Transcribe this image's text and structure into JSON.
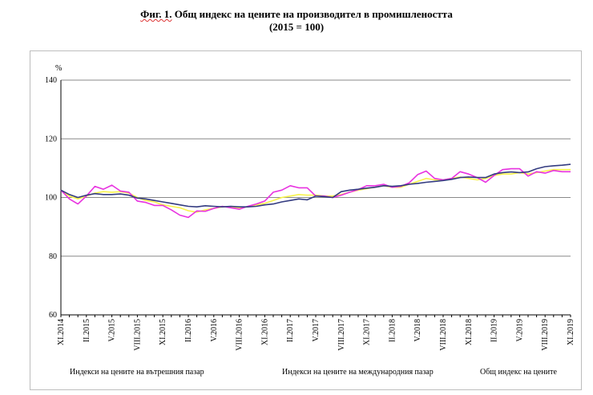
{
  "title": {
    "prefix": "Фиг. 1.",
    "main": " Общ индекс на цените на производител в промишлеността",
    "line2": "(2015 = 100)"
  },
  "chart_data": {
    "type": "line",
    "ylabel": "%",
    "ylim": [
      60,
      140
    ],
    "yticks": [
      60,
      80,
      100,
      120,
      140
    ],
    "grid": true,
    "x": [
      "XI.2014",
      "XII.2014",
      "I.2015",
      "II.2015",
      "III.2015",
      "IV.2015",
      "V.2015",
      "VI.2015",
      "VII.2015",
      "VIII.2015",
      "IX.2015",
      "X.2015",
      "XI.2015",
      "XII.2015",
      "I.2016",
      "II.2016",
      "III.2016",
      "IV.2016",
      "V.2016",
      "VI.2016",
      "VII.2016",
      "VIII.2016",
      "IX.2016",
      "X.2016",
      "XI.2016",
      "XII.2016",
      "I.2017",
      "II.2017",
      "III.2017",
      "IV.2017",
      "V.2017",
      "VI.2017",
      "VII.2017",
      "VIII.2017",
      "IX.2017",
      "X.2017",
      "XI.2017",
      "XII.2017",
      "I.2018",
      "II.2018",
      "III.2018",
      "IV.2018",
      "V.2018",
      "VI.2018",
      "VII.2018",
      "VIII.2018",
      "IX.2018",
      "X.2018",
      "XI.2018",
      "XII.2018",
      "I.2019",
      "II.2019",
      "III.2019",
      "IV.2019",
      "V.2019",
      "VI.2019",
      "VII.2019",
      "VIII.2019",
      "IX.2019",
      "X.2019",
      "XI.2019"
    ],
    "tick_labels": [
      "XI.2014",
      "II.2015",
      "V.2015",
      "VIII.2015",
      "XI.2015",
      "II.2016",
      "V.2016",
      "VIII.2016",
      "XI.2016",
      "II.2017",
      "V.2017",
      "VIII.2017",
      "XI.2017",
      "II.2018",
      "V.2018",
      "VIII.2018",
      "XI.2018",
      "II.2019",
      "V.2019",
      "VIII.2019",
      "XI.2019"
    ],
    "legend_position": "bottom",
    "series": [
      {
        "name": "Индекси на цените на вътрешния пазар",
        "color": "#f7f34a",
        "values": [
          102.5,
          100.5,
          99.5,
          100.5,
          101.5,
          102.0,
          101.8,
          102.0,
          101.5,
          100.0,
          99.0,
          98.5,
          97.5,
          97.0,
          96.5,
          95.5,
          95.0,
          95.8,
          96.3,
          96.8,
          96.8,
          96.5,
          96.8,
          97.5,
          98.0,
          99.0,
          100.0,
          100.5,
          101.0,
          100.8,
          100.8,
          100.5,
          100.5,
          101.0,
          101.8,
          102.5,
          103.0,
          103.5,
          104.0,
          103.5,
          103.5,
          104.5,
          105.5,
          106.5,
          106.0,
          106.0,
          106.5,
          107.0,
          106.5,
          106.0,
          106.5,
          107.5,
          108.0,
          108.0,
          108.5,
          108.0,
          108.5,
          109.0,
          109.5,
          109.5,
          109.5
        ]
      },
      {
        "name": "Индекси на цените на международния пазар",
        "color": "#e832e0",
        "values": [
          102.5,
          99.5,
          97.8,
          100.5,
          103.8,
          102.8,
          104.2,
          102.2,
          101.8,
          98.8,
          98.3,
          97.3,
          97.3,
          95.8,
          94.0,
          93.2,
          95.4,
          95.3,
          96.3,
          97.0,
          96.5,
          96.0,
          97.0,
          97.8,
          98.8,
          101.8,
          102.5,
          104.0,
          103.3,
          103.3,
          100.5,
          100.5,
          100.0,
          100.8,
          101.8,
          102.7,
          104.0,
          104.0,
          104.5,
          103.5,
          103.8,
          105.0,
          107.8,
          109.0,
          106.5,
          106.0,
          106.5,
          108.8,
          108.0,
          106.8,
          105.2,
          107.5,
          109.5,
          109.8,
          109.8,
          107.3,
          108.8,
          108.3,
          109.2,
          108.8,
          108.8
        ]
      },
      {
        "name": "Общ индекс на цените",
        "color": "#333b80",
        "values": [
          102.5,
          101.0,
          100.0,
          100.8,
          101.3,
          101.0,
          101.0,
          101.2,
          100.8,
          99.8,
          99.5,
          99.0,
          98.5,
          98.0,
          97.5,
          97.0,
          96.8,
          97.2,
          97.0,
          96.8,
          97.0,
          96.8,
          96.8,
          97.0,
          97.5,
          97.8,
          98.5,
          99.0,
          99.5,
          99.2,
          100.5,
          100.3,
          100.0,
          102.0,
          102.5,
          102.8,
          103.2,
          103.5,
          104.0,
          103.8,
          104.0,
          104.5,
          104.8,
          105.2,
          105.5,
          105.8,
          106.2,
          106.8,
          107.0,
          106.8,
          106.8,
          108.0,
          108.5,
          108.7,
          108.5,
          108.7,
          109.8,
          110.5,
          110.8,
          111.0,
          111.3
        ]
      }
    ]
  }
}
